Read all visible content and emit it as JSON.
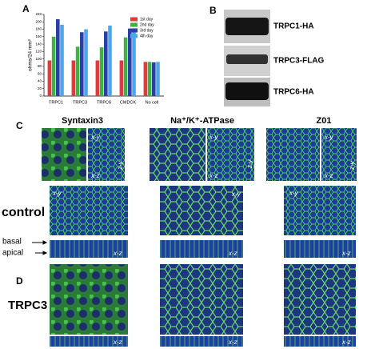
{
  "chart_data": {
    "type": "bar",
    "panel": "A",
    "y_label": "ohms/24 mm²",
    "categories": [
      "TRPC1",
      "TRPC3",
      "TRPC6",
      "CMDCK",
      "No cell"
    ],
    "series": [
      {
        "name": "1st day",
        "color": "#e03a3a",
        "values": [
          96,
          96,
          96,
          96,
          92
        ]
      },
      {
        "name": "2nd day",
        "color": "#3fb23f",
        "values": [
          160,
          133,
          131,
          158,
          92
        ]
      },
      {
        "name": "3rd day",
        "color": "#2a3fa8",
        "values": [
          207,
          172,
          174,
          182,
          91
        ]
      },
      {
        "name": "4th day",
        "color": "#4aa8e8",
        "values": [
          192,
          180,
          190,
          175,
          92
        ]
      }
    ],
    "ylim": [
      0,
      220
    ],
    "yticks": [
      0,
      20,
      40,
      60,
      80,
      100,
      120,
      140,
      160,
      180,
      200,
      220
    ],
    "legend": "upper right"
  },
  "blot": {
    "panel": "B",
    "labels": [
      "TRPC1-HA",
      "TRPC3-FLAG",
      "TRPC6-HA"
    ]
  },
  "microscopy": {
    "panel_c": "C",
    "panel_d": "D",
    "columns": [
      "Syntaxin3",
      "Na⁺/K⁺-ATPase",
      "Z01"
    ],
    "rows": [
      "control",
      "TRPC3"
    ],
    "basal": "basal",
    "apical": "apical",
    "overlays": [
      "x-y",
      "z-y",
      "x-z",
      "x-y",
      "z-y",
      "x-z",
      "x-y",
      "z-y",
      "x-z",
      "x-y",
      "x-y",
      "x-y",
      "x-z",
      "x-z",
      "x-z",
      "x-z",
      "x-z",
      "x-z"
    ]
  }
}
